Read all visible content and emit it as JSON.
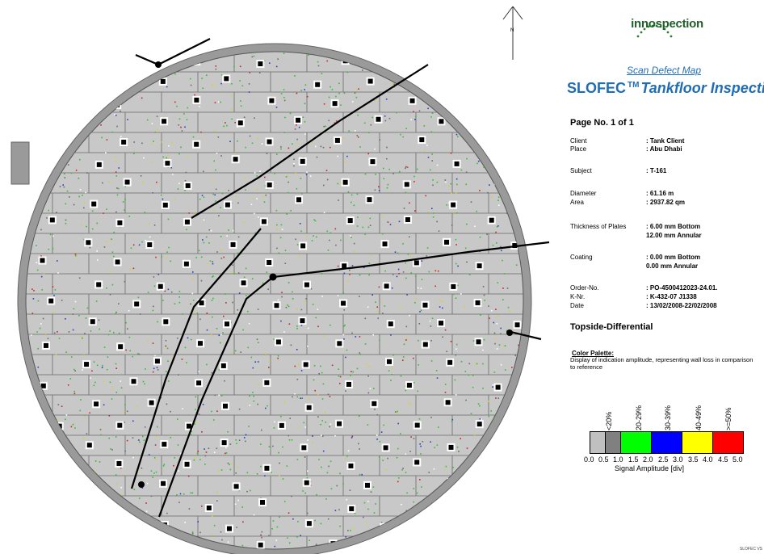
{
  "north": {
    "label": "N"
  },
  "logo": {
    "text": "innospection"
  },
  "header": {
    "map_title": "Scan Defect Map",
    "brand": "SLOFEC",
    "tm": "TM",
    "subtitle": "Tankfloor Inspection"
  },
  "page_no": "Page No. 1 of 1",
  "info": {
    "client_label": "Client",
    "client": ": Tank Client",
    "place_label": "Place",
    "place": ": Abu Dhabi",
    "subject_label": "Subject",
    "subject": ": T-161",
    "diameter_label": "Diameter",
    "diameter": ": 61.16 m",
    "area_label": "Area",
    "area": ": 2937.82 qm",
    "thickness_label": "Thickness of Plates",
    "thickness_1": ": 6.00 mm   Bottom",
    "thickness_2": "  12.00 mm  Annular",
    "coating_label": "Coating",
    "coating_1": ": 0.00 mm   Bottom",
    "coating_2": "  0.00 mm   Annular",
    "order_label": "Order-No.",
    "order": ": PO-4500412023-24.01.",
    "knr_label": "K-Nr.",
    "knr": ": K-432-07 J1338",
    "date_label": "Date",
    "date": ": 13/02/2008-22/02/2008"
  },
  "topside": "Topside-Differential",
  "palette": {
    "title": "Color Palette:",
    "description": "Display of indication amplitude, representing wall loss in comparison to reference",
    "pct_labels": [
      "<20%",
      "20-29%",
      "30-39%",
      "40-49%",
      ">=50%"
    ],
    "colors": [
      "#c0c0c0",
      "#808080",
      "#00ff00",
      "#0000ff",
      "#ffff00",
      "#ff0000"
    ],
    "ticks": [
      "0.0",
      "0.5",
      "1.0",
      "1.5",
      "2.0",
      "2.5",
      "3.0",
      "3.5",
      "4.0",
      "4.5",
      "5.0"
    ],
    "axis_title": "Signal Amplitude [div]"
  },
  "footer": "SLOFEC VS"
}
